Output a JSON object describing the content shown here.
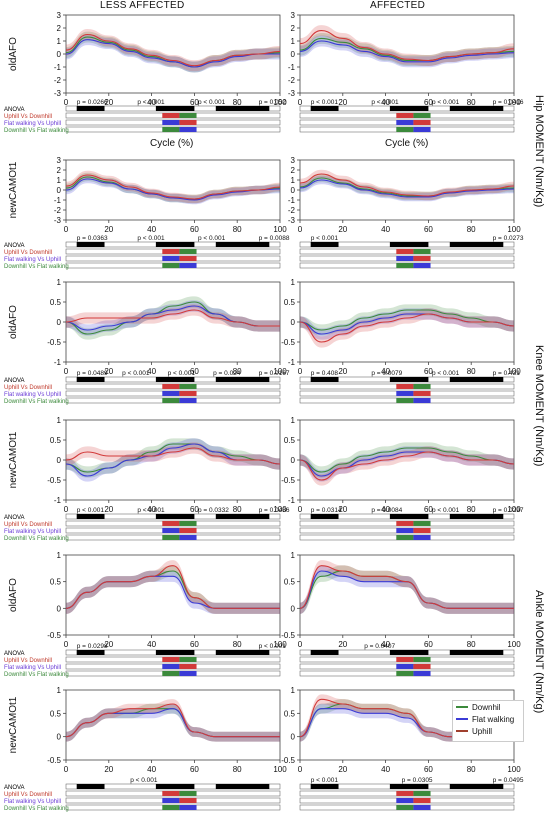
{
  "columns": [
    "LESS AFFECTED",
    "AFFECTED"
  ],
  "moment_labels": [
    "Hip MOMENT (Nm/Kg)",
    "Knee MOMENT (Nm/Kg)",
    "Ankle MOMENT (Nm/Kg)"
  ],
  "cycle_label": "Cycle (%)",
  "anova_rows": [
    "ANOVA",
    "Uphill Vs Downhill",
    "Flat walking Vs Uphill",
    "Downhill Vs Flat walking"
  ],
  "anova_rows_alt": [
    "ANOVA",
    "Uphill Vs Downhill",
    "Flat walking Vs Uphill",
    "Downhill Vs Flat walking"
  ],
  "colors": {
    "downhill": "#3c8a3c",
    "flat": "#3b3bd6",
    "uphill": "#d23a3a"
  },
  "legend": [
    {
      "name": "Downhil",
      "color": "#3c8a3c"
    },
    {
      "name": "Flat walking",
      "color": "#3b3bd6"
    },
    {
      "name": "Uphill",
      "color": "#a0402e"
    }
  ],
  "chart_data": [
    {
      "type": "line",
      "row_label": "oldAFO",
      "moment": "Hip",
      "side": "LESS AFFECTED",
      "x": [
        0,
        10,
        20,
        30,
        40,
        50,
        60,
        70,
        80,
        90,
        100
      ],
      "xlim": [
        0,
        100
      ],
      "ylim": [
        -3,
        3
      ],
      "xticks": [
        0,
        20,
        40,
        60,
        80,
        100
      ],
      "yticks": [
        -3,
        -2,
        -1,
        0,
        1,
        2,
        3
      ],
      "series": [
        {
          "name": "Downhil",
          "values": [
            0.1,
            1.3,
            0.9,
            0.3,
            -0.2,
            -0.6,
            -1.0,
            -0.5,
            -0.1,
            0.0,
            0.1
          ]
        },
        {
          "name": "Flat walking",
          "values": [
            0.0,
            1.1,
            0.8,
            0.2,
            -0.3,
            -0.6,
            -1.0,
            -0.6,
            -0.2,
            0.0,
            0.0
          ]
        },
        {
          "name": "Uphill",
          "values": [
            0.3,
            1.5,
            1.0,
            0.4,
            -0.1,
            -0.5,
            -0.9,
            -0.5,
            -0.1,
            0.0,
            0.2
          ]
        }
      ],
      "p_values": [
        "p = 0.0266",
        "p < 0.001",
        "p < 0.001",
        "p = 0.052"
      ]
    },
    {
      "type": "line",
      "row_label": "oldAFO",
      "moment": "Hip",
      "side": "AFFECTED",
      "x": [
        0,
        10,
        20,
        30,
        40,
        50,
        60,
        70,
        80,
        90,
        100
      ],
      "xlim": [
        0,
        100
      ],
      "ylim": [
        -3,
        3
      ],
      "xticks": [
        0,
        20,
        40,
        60,
        80,
        100
      ],
      "yticks": [
        -3,
        -2,
        -1,
        0,
        1,
        2,
        3
      ],
      "series": [
        {
          "name": "Downhil",
          "values": [
            0.3,
            1.2,
            0.9,
            0.4,
            -0.1,
            -0.5,
            -0.5,
            -0.2,
            0.0,
            0.1,
            0.2
          ]
        },
        {
          "name": "Flat walking",
          "values": [
            0.2,
            1.0,
            0.7,
            0.2,
            -0.2,
            -0.6,
            -0.6,
            -0.3,
            -0.1,
            0.0,
            0.1
          ]
        },
        {
          "name": "Uphill",
          "values": [
            0.8,
            1.8,
            1.2,
            0.5,
            0.0,
            -0.4,
            -0.5,
            -0.2,
            0.0,
            0.1,
            0.4
          ]
        }
      ],
      "p_values": [
        "p < 0.001",
        "p < 0.001",
        "p < 0.001",
        "p = 0.0416"
      ]
    },
    {
      "type": "line",
      "row_label": "newCAMOt1",
      "moment": "Hip",
      "side": "LESS AFFECTED",
      "x": [
        0,
        10,
        20,
        30,
        40,
        50,
        60,
        70,
        80,
        90,
        100
      ],
      "xlim": [
        0,
        100
      ],
      "ylim": [
        -3,
        3
      ],
      "xticks": [
        0,
        20,
        40,
        60,
        80,
        100
      ],
      "yticks": [
        -3,
        -2,
        -1,
        0,
        1,
        2,
        3
      ],
      "series": [
        {
          "name": "Downhil",
          "values": [
            0.2,
            1.3,
            0.8,
            0.1,
            -0.4,
            -0.8,
            -0.9,
            -0.4,
            -0.1,
            0.0,
            0.2
          ]
        },
        {
          "name": "Flat walking",
          "values": [
            0.0,
            1.1,
            0.7,
            0.1,
            -0.4,
            -0.8,
            -1.0,
            -0.5,
            -0.2,
            0.0,
            0.1
          ]
        },
        {
          "name": "Uphill",
          "values": [
            0.4,
            1.5,
            1.0,
            0.3,
            -0.3,
            -0.7,
            -0.9,
            -0.4,
            -0.1,
            0.0,
            0.3
          ]
        }
      ],
      "p_values": [
        "p = 0.0363",
        "p < 0.001",
        "p < 0.001",
        "p = 0.0088"
      ]
    },
    {
      "type": "line",
      "row_label": "newCAMOt1",
      "moment": "Hip",
      "side": "AFFECTED",
      "x": [
        0,
        10,
        20,
        30,
        40,
        50,
        60,
        70,
        80,
        90,
        100
      ],
      "xlim": [
        0,
        100
      ],
      "ylim": [
        -3,
        3
      ],
      "xticks": [
        0,
        20,
        40,
        60,
        80,
        100
      ],
      "yticks": [
        -3,
        -2,
        -1,
        0,
        1,
        2,
        3
      ],
      "series": [
        {
          "name": "Downhil",
          "values": [
            0.3,
            1.2,
            0.7,
            0.1,
            -0.3,
            -0.6,
            -0.6,
            -0.3,
            0.0,
            0.1,
            0.2
          ]
        },
        {
          "name": "Flat walking",
          "values": [
            0.2,
            1.0,
            0.6,
            0.0,
            -0.4,
            -0.7,
            -0.7,
            -0.3,
            -0.1,
            0.0,
            0.1
          ]
        },
        {
          "name": "Uphill",
          "values": [
            0.7,
            1.6,
            1.0,
            0.3,
            -0.2,
            -0.5,
            -0.6,
            -0.2,
            0.0,
            0.1,
            0.4
          ]
        }
      ],
      "p_values": [
        "p < 0.001",
        "p = 0.0273"
      ]
    },
    {
      "type": "line",
      "row_label": "oldAFO",
      "moment": "Knee",
      "side": "LESS AFFECTED",
      "x": [
        0,
        10,
        20,
        30,
        40,
        50,
        60,
        70,
        80,
        90,
        100
      ],
      "xlim": [
        0,
        100
      ],
      "ylim": [
        -1,
        1
      ],
      "xticks": [
        0,
        20,
        40,
        60,
        80,
        100
      ],
      "yticks": [
        -1,
        -0.5,
        0,
        0.5,
        1
      ],
      "series": [
        {
          "name": "Downhil",
          "values": [
            0.0,
            -0.3,
            -0.2,
            0.0,
            0.2,
            0.4,
            0.5,
            0.2,
            0.0,
            -0.1,
            -0.1
          ]
        },
        {
          "name": "Flat walking",
          "values": [
            0.0,
            -0.2,
            -0.1,
            0.0,
            0.2,
            0.3,
            0.4,
            0.2,
            0.0,
            -0.1,
            -0.1
          ]
        },
        {
          "name": "Uphill",
          "values": [
            0.0,
            0.1,
            0.1,
            0.1,
            0.1,
            0.2,
            0.3,
            0.1,
            0.0,
            -0.1,
            -0.1
          ]
        }
      ],
      "p_values": [
        "p = 0.0489",
        "p < 0.001",
        "p < 0.001",
        "p = 0.024",
        "p = 0.0167"
      ]
    },
    {
      "type": "line",
      "row_label": "oldAFO",
      "moment": "Knee",
      "side": "AFFECTED",
      "x": [
        0,
        10,
        20,
        30,
        40,
        50,
        60,
        70,
        80,
        90,
        100
      ],
      "xlim": [
        0,
        100
      ],
      "ylim": [
        -1,
        1
      ],
      "xticks": [
        0,
        20,
        40,
        60,
        80,
        100
      ],
      "yticks": [
        -1,
        -0.5,
        0,
        0.5,
        1
      ],
      "series": [
        {
          "name": "Downhil",
          "values": [
            0.0,
            -0.2,
            -0.1,
            0.1,
            0.2,
            0.3,
            0.3,
            0.2,
            0.1,
            0.0,
            -0.1
          ]
        },
        {
          "name": "Flat walking",
          "values": [
            0.0,
            -0.3,
            -0.2,
            0.0,
            0.1,
            0.2,
            0.2,
            0.1,
            0.0,
            0.0,
            -0.1
          ]
        },
        {
          "name": "Uphill",
          "values": [
            0.0,
            -0.5,
            -0.3,
            -0.1,
            0.0,
            0.1,
            0.2,
            0.1,
            0.0,
            0.0,
            -0.1
          ]
        }
      ],
      "p_values": [
        "p = 0.408",
        "p = 0.0079",
        "p < 0.001",
        "p = 0.431"
      ]
    },
    {
      "type": "line",
      "row_label": "newCAMOt1",
      "moment": "Knee",
      "side": "LESS AFFECTED",
      "x": [
        0,
        10,
        20,
        30,
        40,
        50,
        60,
        70,
        80,
        90,
        100
      ],
      "xlim": [
        0,
        100
      ],
      "ylim": [
        -1,
        1
      ],
      "xticks": [
        0,
        20,
        40,
        60,
        80,
        100
      ],
      "yticks": [
        -1,
        -0.5,
        0,
        0.5,
        1
      ],
      "series": [
        {
          "name": "Downhil",
          "values": [
            -0.1,
            -0.3,
            -0.2,
            0.0,
            0.2,
            0.4,
            0.4,
            0.2,
            0.1,
            0.0,
            -0.1
          ]
        },
        {
          "name": "Flat walking",
          "values": [
            -0.1,
            -0.4,
            -0.2,
            0.0,
            0.1,
            0.3,
            0.4,
            0.2,
            0.0,
            0.0,
            -0.1
          ]
        },
        {
          "name": "Uphill",
          "values": [
            0.0,
            0.2,
            0.1,
            0.1,
            0.1,
            0.2,
            0.3,
            0.1,
            0.0,
            0.0,
            -0.1
          ]
        }
      ],
      "p_values": [
        "p < 0.001",
        "p < 0.001",
        "p = 0.0332",
        "p = 0.0486"
      ]
    },
    {
      "type": "line",
      "row_label": "newCAMOt1",
      "moment": "Knee",
      "side": "AFFECTED",
      "x": [
        0,
        10,
        20,
        30,
        40,
        50,
        60,
        70,
        80,
        90,
        100
      ],
      "xlim": [
        0,
        100
      ],
      "ylim": [
        -1,
        1
      ],
      "xticks": [
        0,
        20,
        40,
        60,
        80,
        100
      ],
      "yticks": [
        -1,
        -0.5,
        0,
        0.5,
        1
      ],
      "series": [
        {
          "name": "Downhil",
          "values": [
            0.0,
            -0.3,
            -0.1,
            0.1,
            0.2,
            0.3,
            0.3,
            0.2,
            0.1,
            0.0,
            -0.1
          ]
        },
        {
          "name": "Flat walking",
          "values": [
            0.0,
            -0.4,
            -0.2,
            0.0,
            0.1,
            0.2,
            0.2,
            0.1,
            0.0,
            0.0,
            -0.1
          ]
        },
        {
          "name": "Uphill",
          "values": [
            0.0,
            -0.5,
            -0.2,
            -0.1,
            0.0,
            0.1,
            0.2,
            0.1,
            0.0,
            0.0,
            -0.1
          ]
        }
      ],
      "p_values": [
        "p = 0.0314",
        "p = 0.0084",
        "p < 0.001",
        "p = 0.0297"
      ]
    },
    {
      "type": "line",
      "row_label": "oldAFO",
      "moment": "Ankle",
      "side": "LESS AFFECTED",
      "x": [
        0,
        10,
        20,
        30,
        40,
        50,
        60,
        70,
        80,
        90,
        100
      ],
      "xlim": [
        0,
        100
      ],
      "ylim": [
        -0.5,
        1
      ],
      "xticks": [
        0,
        20,
        40,
        60,
        80,
        100
      ],
      "yticks": [
        -0.5,
        0,
        0.5,
        1
      ],
      "series": [
        {
          "name": "Downhil",
          "values": [
            0.0,
            0.3,
            0.5,
            0.5,
            0.6,
            0.7,
            0.2,
            0.0,
            0.0,
            0.0,
            0.0
          ]
        },
        {
          "name": "Flat walking",
          "values": [
            0.0,
            0.3,
            0.5,
            0.5,
            0.6,
            0.6,
            0.1,
            0.0,
            0.0,
            0.0,
            0.0
          ]
        },
        {
          "name": "Uphill",
          "values": [
            0.0,
            0.3,
            0.5,
            0.5,
            0.6,
            0.8,
            0.2,
            0.0,
            0.0,
            0.0,
            0.0
          ]
        }
      ],
      "p_values": [
        "p = 0.0298",
        "p < 0.001"
      ]
    },
    {
      "type": "line",
      "row_label": "oldAFO",
      "moment": "Ankle",
      "side": "AFFECTED",
      "x": [
        0,
        10,
        20,
        30,
        40,
        50,
        60,
        70,
        80,
        90,
        100
      ],
      "xlim": [
        0,
        100
      ],
      "ylim": [
        -0.5,
        1
      ],
      "xticks": [
        0,
        20,
        40,
        60,
        80,
        100
      ],
      "yticks": [
        -0.5,
        0,
        0.5,
        1
      ],
      "series": [
        {
          "name": "Downhil",
          "values": [
            0.0,
            0.6,
            0.7,
            0.6,
            0.6,
            0.5,
            0.1,
            0.0,
            0.0,
            0.0,
            0.0
          ]
        },
        {
          "name": "Flat walking",
          "values": [
            0.0,
            0.7,
            0.6,
            0.5,
            0.5,
            0.5,
            0.1,
            0.0,
            0.0,
            0.0,
            0.0
          ]
        },
        {
          "name": "Uphill",
          "values": [
            0.0,
            0.8,
            0.7,
            0.6,
            0.6,
            0.5,
            0.1,
            0.0,
            0.0,
            0.0,
            0.0
          ]
        }
      ],
      "p_values": [
        "p = 0.0407"
      ]
    },
    {
      "type": "line",
      "row_label": "newCAMOt1",
      "moment": "Ankle",
      "side": "LESS AFFECTED",
      "x": [
        0,
        10,
        20,
        30,
        40,
        50,
        60,
        70,
        80,
        90,
        100
      ],
      "xlim": [
        0,
        100
      ],
      "ylim": [
        -0.5,
        1
      ],
      "xticks": [
        0,
        20,
        40,
        60,
        80,
        100
      ],
      "yticks": [
        -0.5,
        0,
        0.5,
        1
      ],
      "series": [
        {
          "name": "Downhil",
          "values": [
            0.0,
            0.3,
            0.5,
            0.5,
            0.6,
            0.6,
            0.1,
            0.0,
            0.0,
            0.0,
            0.0
          ]
        },
        {
          "name": "Flat walking",
          "values": [
            0.0,
            0.3,
            0.5,
            0.5,
            0.5,
            0.6,
            0.1,
            0.0,
            0.0,
            0.0,
            0.0
          ]
        },
        {
          "name": "Uphill",
          "values": [
            0.0,
            0.3,
            0.5,
            0.6,
            0.6,
            0.7,
            0.1,
            0.0,
            0.0,
            0.0,
            0.0
          ]
        }
      ],
      "p_values": [
        "p < 0.001"
      ]
    },
    {
      "type": "line",
      "row_label": "newCAMOt1",
      "moment": "Ankle",
      "side": "AFFECTED",
      "x": [
        0,
        10,
        20,
        30,
        40,
        50,
        60,
        70,
        80,
        90,
        100
      ],
      "xlim": [
        0,
        100
      ],
      "ylim": [
        -0.5,
        1
      ],
      "xticks": [
        0,
        20,
        40,
        60,
        80,
        100
      ],
      "yticks": [
        -0.5,
        0,
        0.5,
        1
      ],
      "series": [
        {
          "name": "Downhil",
          "values": [
            0.0,
            0.6,
            0.7,
            0.6,
            0.6,
            0.5,
            0.1,
            0.0,
            0.0,
            0.0,
            0.0
          ]
        },
        {
          "name": "Flat walking",
          "values": [
            0.0,
            0.6,
            0.6,
            0.5,
            0.5,
            0.4,
            0.1,
            0.0,
            0.0,
            0.0,
            0.0
          ]
        },
        {
          "name": "Uphill",
          "values": [
            0.0,
            0.8,
            0.7,
            0.6,
            0.6,
            0.5,
            0.1,
            0.0,
            0.0,
            0.0,
            0.0
          ]
        }
      ],
      "p_values": [
        "p < 0.001",
        "p = 0.0305",
        "p = 0.0495"
      ]
    }
  ]
}
